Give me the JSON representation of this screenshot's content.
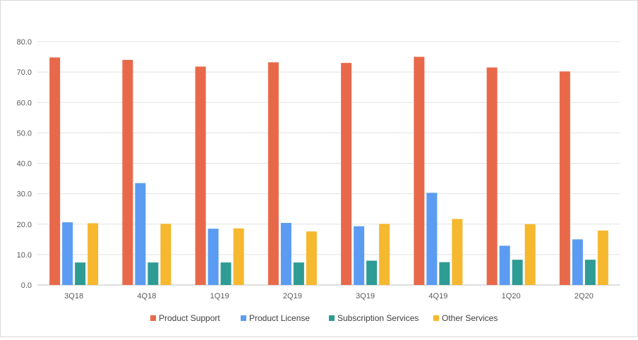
{
  "chart_data": {
    "type": "bar",
    "title": "",
    "xlabel": "",
    "ylabel": "",
    "categories": [
      "3Q18",
      "4Q18",
      "1Q19",
      "2Q19",
      "3Q19",
      "4Q19",
      "1Q20",
      "2Q20"
    ],
    "ylim": [
      0,
      80
    ],
    "yticks": [
      "0.0",
      "10.0",
      "20.0",
      "30.0",
      "40.0",
      "50.0",
      "60.0",
      "70.0",
      "80.0"
    ],
    "grid": true,
    "legend_position": "bottom",
    "series": [
      {
        "name": "Product Support",
        "color": "#e8694a",
        "values": [
          74.8,
          74.0,
          71.8,
          73.2,
          73.0,
          75.0,
          71.5,
          70.2
        ]
      },
      {
        "name": "Product License",
        "color": "#5b9cf2",
        "values": [
          20.6,
          33.5,
          18.5,
          20.4,
          19.3,
          30.3,
          12.9,
          15.0
        ]
      },
      {
        "name": "Subscription Services",
        "color": "#2e9c94",
        "values": [
          7.4,
          7.4,
          7.4,
          7.4,
          8.0,
          7.5,
          8.3,
          8.3
        ]
      },
      {
        "name": "Other Services",
        "color": "#f5b82e",
        "values": [
          20.3,
          20.1,
          18.6,
          17.6,
          20.1,
          21.7,
          20.0,
          17.9
        ]
      }
    ]
  }
}
